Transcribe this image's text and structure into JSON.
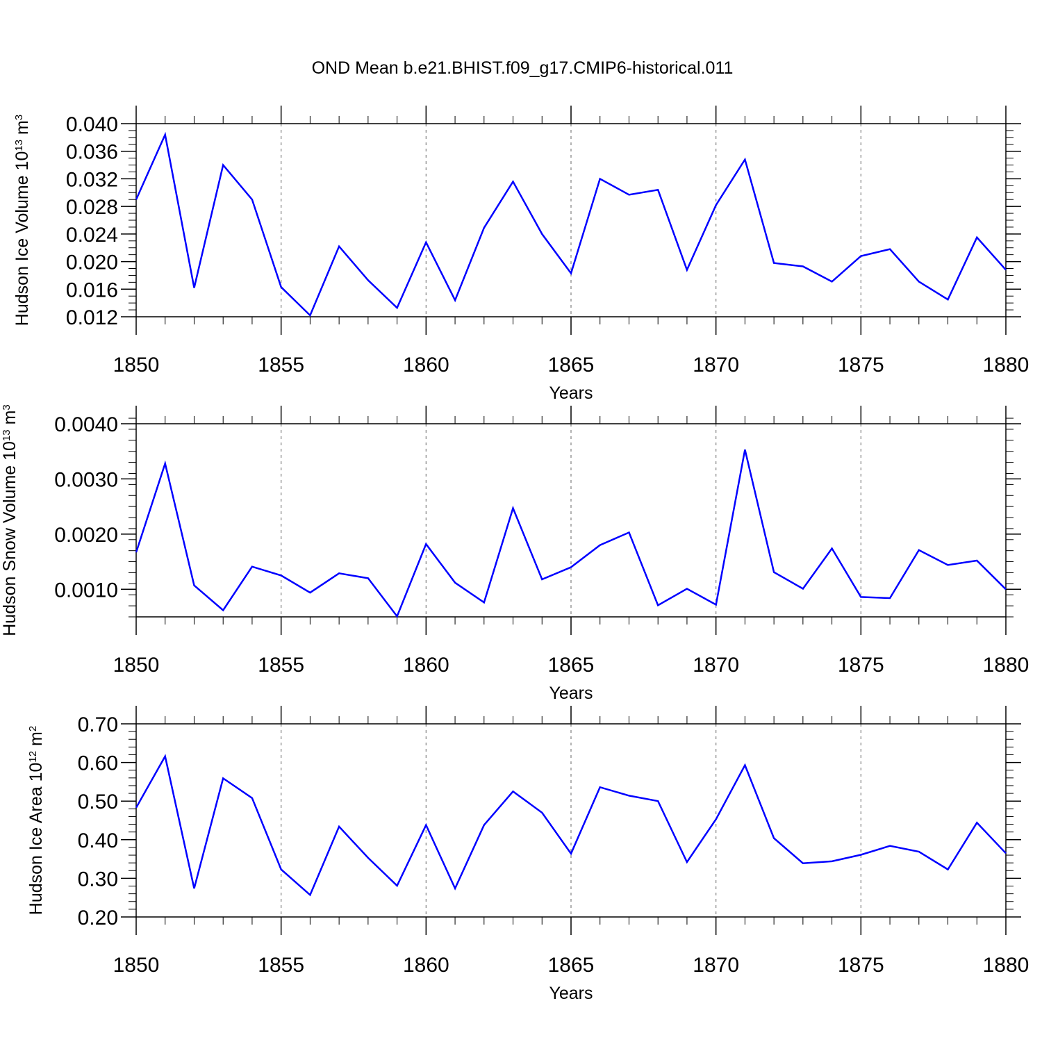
{
  "title": "OND Mean b.e21.BHIST.f09_g17.CMIP6-historical.011",
  "colors": {
    "line": "#0000ff",
    "axis": "#000000",
    "grid": "#808080",
    "background": "#ffffff"
  },
  "chart_data": [
    {
      "type": "line",
      "ylabel": "Hudson Ice Volume 10",
      "ylabel_exp": "13",
      "ylabel_unit": "m",
      "ylabel_unit_exp": "3",
      "xlabel": "Years",
      "xlim": [
        1850,
        1880
      ],
      "ylim": [
        0.012,
        0.04
      ],
      "yticks": [
        0.012,
        0.016,
        0.02,
        0.024,
        0.028,
        0.032,
        0.036,
        0.04
      ],
      "ytick_labels": [
        "0.012",
        "0.016",
        "0.020",
        "0.024",
        "0.028",
        "0.032",
        "0.036",
        "0.040"
      ],
      "yminor_step": 0.001,
      "xticks": [
        1850,
        1855,
        1860,
        1865,
        1870,
        1875,
        1880
      ],
      "xtick_labels": [
        "1850",
        "1855",
        "1860",
        "1865",
        "1870",
        "1875",
        "1880"
      ],
      "grid": "vertical dashed at major x ticks",
      "x": [
        1850,
        1851,
        1852,
        1853,
        1854,
        1855,
        1856,
        1857,
        1858,
        1859,
        1860,
        1861,
        1862,
        1863,
        1864,
        1865,
        1866,
        1867,
        1868,
        1869,
        1870,
        1871,
        1872,
        1873,
        1874,
        1875,
        1876,
        1877,
        1878,
        1879,
        1880
      ],
      "series": [
        {
          "name": "Hudson Ice Volume",
          "values": [
            0.029,
            0.0384,
            0.0162,
            0.034,
            0.029,
            0.0163,
            0.0122,
            0.0222,
            0.0173,
            0.0133,
            0.0228,
            0.0144,
            0.0249,
            0.0316,
            0.024,
            0.0183,
            0.032,
            0.0297,
            0.0304,
            0.0188,
            0.0282,
            0.0348,
            0.0198,
            0.0193,
            0.0171,
            0.0208,
            0.0218,
            0.0171,
            0.0145,
            0.0235,
            0.0188
          ]
        }
      ]
    },
    {
      "type": "line",
      "ylabel": "Hudson Snow Volume 10",
      "ylabel_exp": "13",
      "ylabel_unit": "m",
      "ylabel_unit_exp": "3",
      "xlabel": "Years",
      "xlim": [
        1850,
        1880
      ],
      "ylim": [
        0.0005,
        0.004
      ],
      "yticks": [
        0.001,
        0.002,
        0.003,
        0.004
      ],
      "ytick_labels": [
        "0.0010",
        "0.0020",
        "0.0030",
        "0.0040"
      ],
      "yminor_step": 0.0002,
      "xticks": [
        1850,
        1855,
        1860,
        1865,
        1870,
        1875,
        1880
      ],
      "xtick_labels": [
        "1850",
        "1855",
        "1860",
        "1865",
        "1870",
        "1875",
        "1880"
      ],
      "grid": "vertical dashed at major x ticks",
      "x": [
        1850,
        1851,
        1852,
        1853,
        1854,
        1855,
        1856,
        1857,
        1858,
        1859,
        1860,
        1861,
        1862,
        1863,
        1864,
        1865,
        1866,
        1867,
        1868,
        1869,
        1870,
        1871,
        1872,
        1873,
        1874,
        1875,
        1876,
        1877,
        1878,
        1879,
        1880
      ],
      "series": [
        {
          "name": "Hudson Snow Volume",
          "values": [
            0.00167,
            0.00328,
            0.00107,
            0.00062,
            0.00141,
            0.00125,
            0.00094,
            0.00129,
            0.0012,
            0.00051,
            0.00182,
            0.00112,
            0.00076,
            0.00247,
            0.00118,
            0.0014,
            0.0018,
            0.00203,
            0.00071,
            0.00101,
            0.00072,
            0.00353,
            0.00131,
            0.00101,
            0.00174,
            0.00086,
            0.00084,
            0.00171,
            0.00144,
            0.00152,
            0.001
          ]
        }
      ]
    },
    {
      "type": "line",
      "ylabel": "Hudson Ice Area 10",
      "ylabel_exp": "12",
      "ylabel_unit": "m",
      "ylabel_unit_exp": "2",
      "xlabel": "Years",
      "xlim": [
        1850,
        1880
      ],
      "ylim": [
        0.2,
        0.7
      ],
      "yticks": [
        0.2,
        0.3,
        0.4,
        0.5,
        0.6,
        0.7
      ],
      "ytick_labels": [
        "0.20",
        "0.30",
        "0.40",
        "0.50",
        "0.60",
        "0.70"
      ],
      "yminor_step": 0.02,
      "xticks": [
        1850,
        1855,
        1860,
        1865,
        1870,
        1875,
        1880
      ],
      "xtick_labels": [
        "1850",
        "1855",
        "1860",
        "1865",
        "1870",
        "1875",
        "1880"
      ],
      "grid": "vertical dashed at major x ticks",
      "x": [
        1850,
        1851,
        1852,
        1853,
        1854,
        1855,
        1856,
        1857,
        1858,
        1859,
        1860,
        1861,
        1862,
        1863,
        1864,
        1865,
        1866,
        1867,
        1868,
        1869,
        1870,
        1871,
        1872,
        1873,
        1874,
        1875,
        1876,
        1877,
        1878,
        1879,
        1880
      ],
      "series": [
        {
          "name": "Hudson Ice Area",
          "values": [
            0.483,
            0.616,
            0.274,
            0.559,
            0.508,
            0.323,
            0.257,
            0.434,
            0.353,
            0.281,
            0.438,
            0.274,
            0.438,
            0.525,
            0.47,
            0.364,
            0.536,
            0.514,
            0.5,
            0.342,
            0.453,
            0.593,
            0.404,
            0.339,
            0.344,
            0.361,
            0.384,
            0.369,
            0.323,
            0.444,
            0.365
          ]
        }
      ]
    }
  ]
}
